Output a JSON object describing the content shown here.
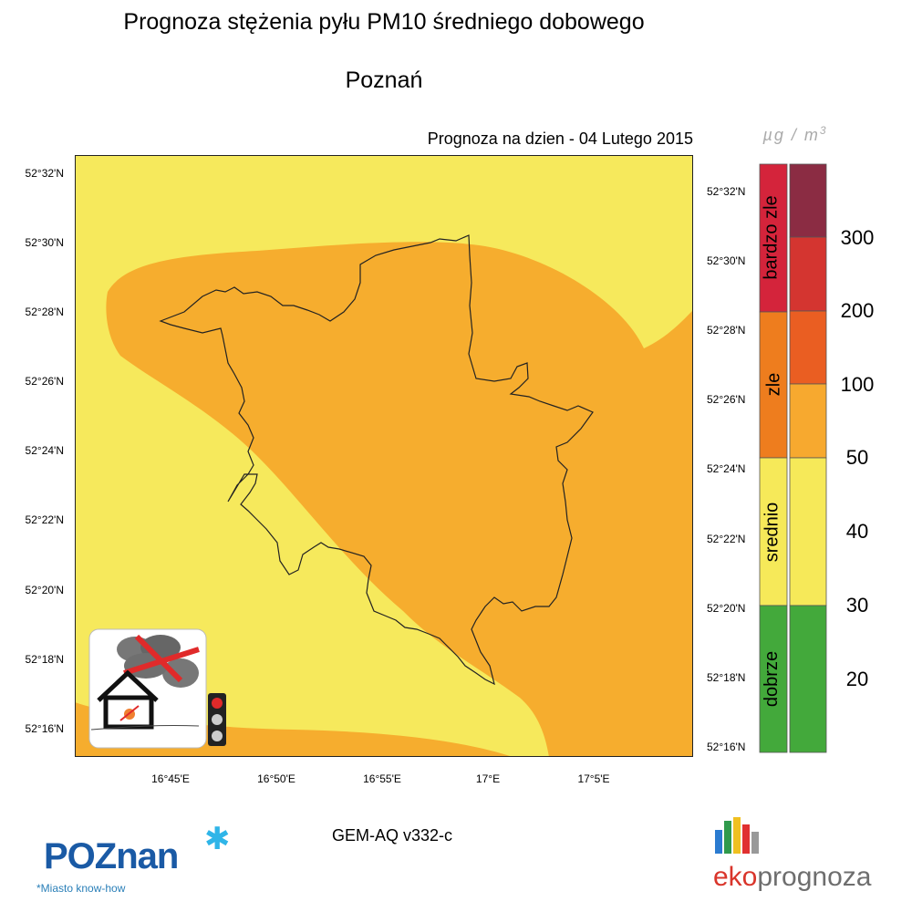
{
  "header": {
    "title": "Prognoza stężenia pyłu PM10 średniego dobowego",
    "city": "Poznań",
    "forecast_date": "Prognoza na dzien -  04 Lutego 2015",
    "unit": "µg / m3"
  },
  "axes": {
    "lat_left": [
      "52°32'N",
      "52°30'N",
      "52°28'N",
      "52°26'N",
      "52°24'N",
      "52°22'N",
      "52°20'N",
      "52°18'N",
      "52°16'N"
    ],
    "lat_right": [
      "52°32'N",
      "52°30'N",
      "52°28'N",
      "52°26'N",
      "52°24'N",
      "52°22'N",
      "52°20'N",
      "52°18'N",
      "52°16'N"
    ],
    "lon": [
      "16°45'E",
      "16°50'E",
      "16°55'E",
      "17°E",
      "17°5'E"
    ]
  },
  "legend": {
    "categories": [
      {
        "label": "bardzo zle",
        "color": "#d4243b"
      },
      {
        "label": "zle",
        "color": "#ee7d1e"
      },
      {
        "label": "srednio",
        "color": "#f6e959"
      },
      {
        "label": "dobrze",
        "color": "#43a93b"
      }
    ],
    "bins": [
      "#8b2c43",
      "#d43530",
      "#ea5e22",
      "#f7a92f",
      "#f6e959",
      "#f6e959",
      "#43a93b",
      "#43a93b"
    ],
    "scale_labels": [
      "300",
      "200",
      "100",
      "50",
      "40",
      "30",
      "20"
    ]
  },
  "map": {
    "colors": {
      "yellow": "#f6e95c",
      "orange": "#f6ad2e"
    }
  },
  "footer": {
    "model": "GEM-AQ v332-c",
    "poznan_logo": "POZnan",
    "poznan_tagline": "Miasto know-how",
    "eko_red": "eko",
    "eko_gray": "prognoza"
  }
}
